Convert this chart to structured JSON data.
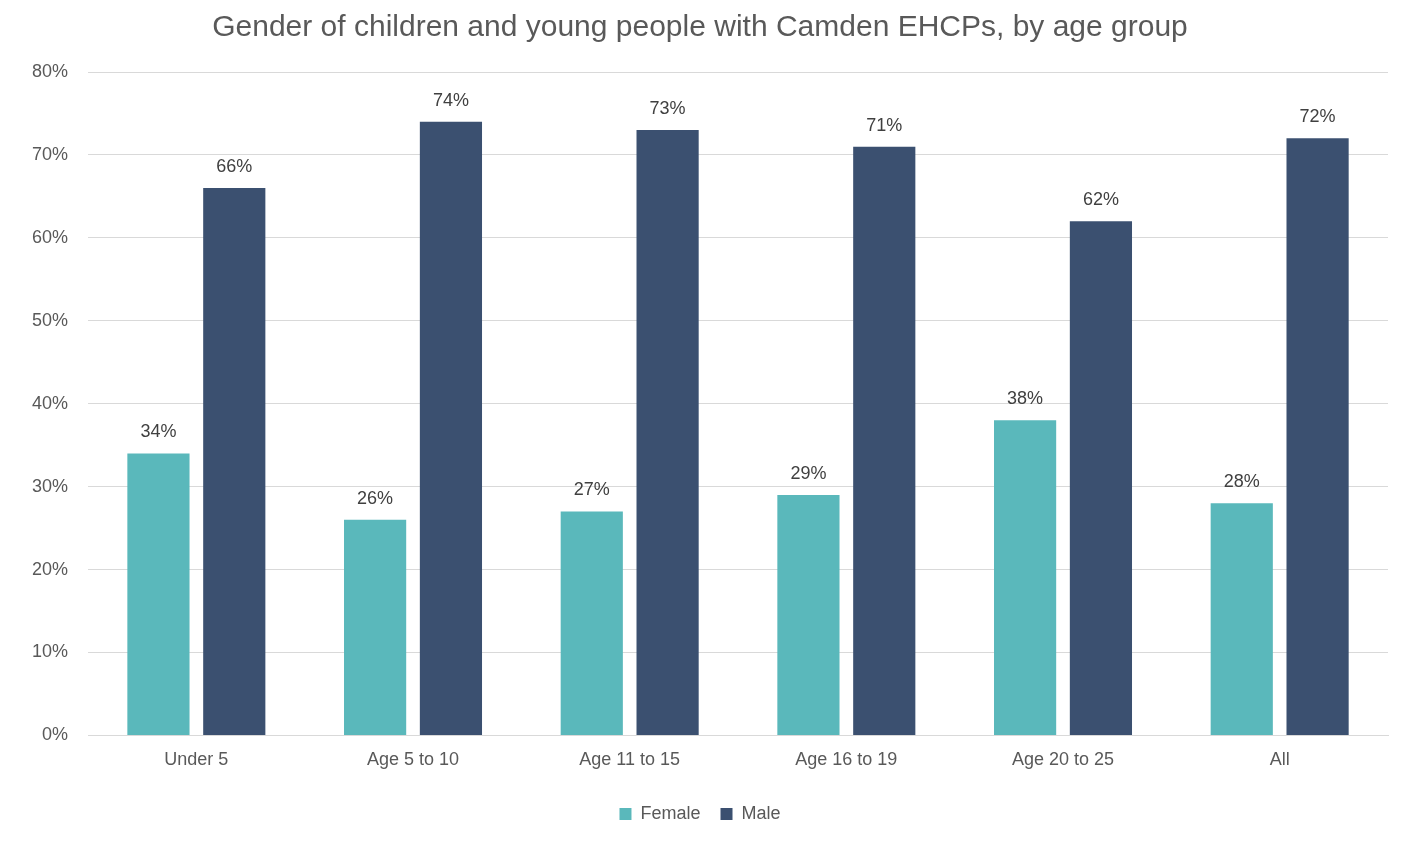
{
  "chart_data": {
    "type": "bar",
    "title": "Gender of children and young people with Camden EHCPs, by age group",
    "categories": [
      "Under 5",
      "Age 5 to 10",
      "Age 11 to 15",
      "Age 16 to 19",
      "Age 20 to 25",
      "All"
    ],
    "series": [
      {
        "name": "Female",
        "color": "#5ab8bb",
        "values": [
          34,
          26,
          27,
          29,
          38,
          28
        ],
        "value_labels": [
          "34%",
          "26%",
          "27%",
          "29%",
          "38%",
          "28%"
        ]
      },
      {
        "name": "Male",
        "color": "#3b5070",
        "values": [
          66,
          74,
          73,
          71,
          62,
          72
        ],
        "value_labels": [
          "66%",
          "74%",
          "73%",
          "71%",
          "62%",
          "72%"
        ]
      }
    ],
    "ylim": [
      0,
      80
    ],
    "yticks": [
      {
        "value": 0,
        "label": "0%"
      },
      {
        "value": 10,
        "label": "10%"
      },
      {
        "value": 20,
        "label": "20%"
      },
      {
        "value": 30,
        "label": "30%"
      },
      {
        "value": 40,
        "label": "40%"
      },
      {
        "value": 50,
        "label": "50%"
      },
      {
        "value": 60,
        "label": "60%"
      },
      {
        "value": 70,
        "label": "70%"
      },
      {
        "value": 80,
        "label": "80%"
      }
    ],
    "grid": "y",
    "legend": "bottom"
  }
}
